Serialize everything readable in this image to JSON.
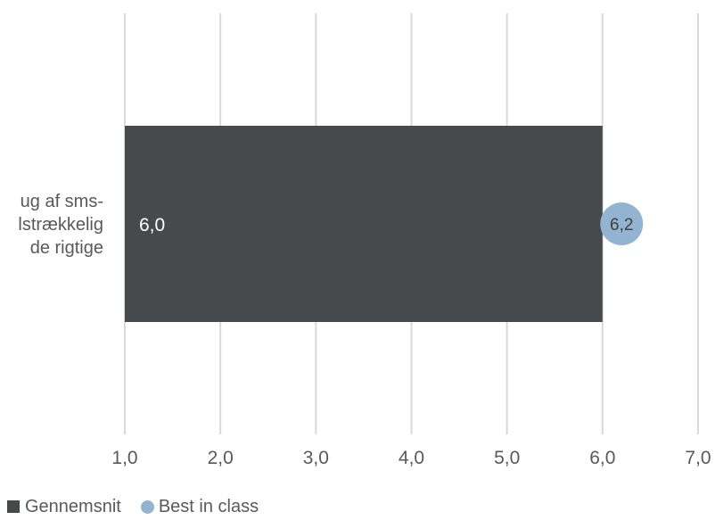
{
  "chart_data": {
    "type": "bar",
    "orientation": "horizontal",
    "categories": [
      "…ug af sms-\n…lstrækkelig\n… de rigtige"
    ],
    "category_label_lines": [
      "ug af sms-",
      "lstrækkelig",
      "de rigtige"
    ],
    "series": [
      {
        "name": "Gennemsnit",
        "type": "bar",
        "values": [
          6.0
        ],
        "value_labels": [
          "6,0"
        ],
        "color": "#464a4d"
      },
      {
        "name": "Best in class",
        "type": "marker",
        "values": [
          6.2
        ],
        "value_labels": [
          "6,2"
        ],
        "color": "#93b4d1"
      }
    ],
    "xlim": [
      1.0,
      7.0
    ],
    "x_ticks": [
      1.0,
      2.0,
      3.0,
      4.0,
      5.0,
      6.0,
      7.0
    ],
    "x_tick_labels": [
      "1,0",
      "2,0",
      "3,0",
      "4,0",
      "5,0",
      "6,0",
      "7,0"
    ],
    "grid": true,
    "legend_position": "bottom-left",
    "title": "",
    "xlabel": "",
    "ylabel": ""
  },
  "legend": {
    "items": [
      {
        "label": "Gennemsnit",
        "shape": "square",
        "color": "#464a4d"
      },
      {
        "label": "Best in class",
        "shape": "circle",
        "color": "#93b4d1"
      }
    ]
  },
  "colors": {
    "grid": "#d9d9d9",
    "text": "#595959",
    "bar_label": "#ffffff",
    "marker_label": "#404040"
  }
}
